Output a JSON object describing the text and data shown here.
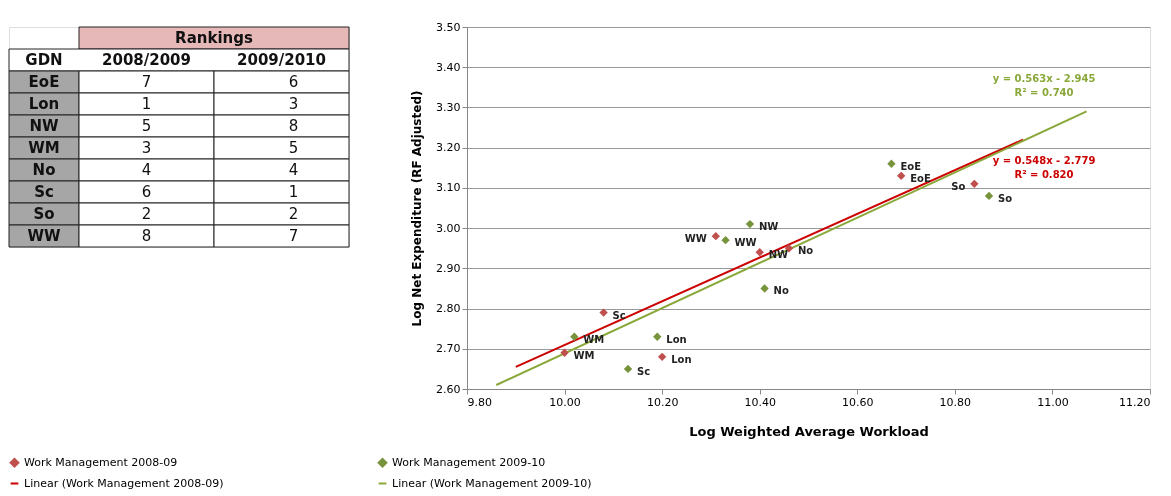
{
  "chart_data": [
    {
      "type": "other",
      "title": "Rankings",
      "xlabel": "GDN",
      "data_labels": true,
      "categories": [
        "EoE",
        "Lon",
        "NW",
        "WM",
        "No",
        "Sc",
        "So",
        "WW"
      ],
      "series": [
        {
          "name": "2008/2009",
          "values": [
            7,
            1,
            5,
            3,
            4,
            6,
            2,
            8
          ]
        },
        {
          "name": "2009/2010",
          "values": [
            6,
            3,
            8,
            5,
            4,
            1,
            2,
            7
          ]
        }
      ]
    },
    {
      "type": "scatter",
      "xlabel": "Log Weighted Average Workload",
      "ylabel": "Log Net Expenditure (RF Adjusted)",
      "xlim": [
        9.8,
        11.2
      ],
      "ylim": [
        2.6,
        3.5
      ],
      "xticks": [
        {
          "value": 9.8,
          "label": "9.80"
        },
        {
          "value": 10.0,
          "label": "10.00"
        },
        {
          "value": 10.2,
          "label": "10.20"
        },
        {
          "value": 10.4,
          "label": "10.40"
        },
        {
          "value": 10.6,
          "label": "10.60"
        },
        {
          "value": 10.8,
          "label": "10.80"
        },
        {
          "value": 11.0,
          "label": "11.00"
        },
        {
          "value": 11.2,
          "label": "11.20"
        }
      ],
      "yticks": [
        {
          "value": 2.6,
          "label": "2.60"
        },
        {
          "value": 2.7,
          "label": "2.70"
        },
        {
          "value": 2.8,
          "label": "2.80"
        },
        {
          "value": 2.9,
          "label": "2.90"
        },
        {
          "value": 3.0,
          "label": "3.00"
        },
        {
          "value": 3.1,
          "label": "3.10"
        },
        {
          "value": 3.2,
          "label": "3.20"
        },
        {
          "value": 3.3,
          "label": "3.30"
        },
        {
          "value": 3.4,
          "label": "3.40"
        },
        {
          "value": 3.5,
          "label": "3.50"
        }
      ],
      "grid": "y",
      "legend": "bottom",
      "series": [
        {
          "name": "Work Management 2008-09",
          "type": "scatter",
          "marker": "diamond",
          "color": "#c0504d",
          "x": [
            10.69,
            10.2,
            10.4,
            10.0,
            10.46,
            10.08,
            10.84,
            10.31
          ],
          "values": [
            3.13,
            2.68,
            2.94,
            2.69,
            2.95,
            2.79,
            3.11,
            2.98
          ]
        },
        {
          "name": "Work Management 2009-10",
          "type": "scatter",
          "marker": "diamond",
          "color": "#77933c",
          "x": [
            10.67,
            10.19,
            10.38,
            10.02,
            10.41,
            10.13,
            10.87,
            10.33
          ],
          "values": [
            3.16,
            2.73,
            3.01,
            2.73,
            2.85,
            2.65,
            3.08,
            2.97
          ]
        },
        {
          "name": "Linear (Work Management 2008-09)",
          "type": "line",
          "color": "#cc0000",
          "x": [
            9.9,
            10.94
          ],
          "values": [
            2.655,
            3.22
          ]
        },
        {
          "name": "Linear (Work Management 2009-10)",
          "type": "line",
          "color": "#8aa83a",
          "x": [
            9.86,
            11.07
          ],
          "values": [
            2.61,
            3.29
          ]
        }
      ],
      "annotations": [
        {
          "text": "EoE",
          "x": 10.69,
          "y": 3.13
        },
        {
          "text": "Lon",
          "x": 10.2,
          "y": 2.68
        },
        {
          "text": "NW",
          "x": 10.4,
          "y": 2.94
        },
        {
          "text": "WM",
          "x": 10.0,
          "y": 2.69
        },
        {
          "text": "No",
          "x": 10.46,
          "y": 2.95
        },
        {
          "text": "Sc",
          "x": 10.08,
          "y": 2.79
        },
        {
          "text": "So",
          "x": 10.84,
          "y": 3.11
        },
        {
          "text": "WW",
          "x": 10.31,
          "y": 2.98
        },
        {
          "text": "EoE",
          "x": 10.67,
          "y": 3.16
        },
        {
          "text": "Lon",
          "x": 10.19,
          "y": 2.73
        },
        {
          "text": "NW",
          "x": 10.38,
          "y": 3.01
        },
        {
          "text": "WM",
          "x": 10.02,
          "y": 2.73
        },
        {
          "text": "No",
          "x": 10.41,
          "y": 2.85
        },
        {
          "text": "Sc",
          "x": 10.13,
          "y": 2.65
        },
        {
          "text": "So",
          "x": 10.87,
          "y": 3.08
        },
        {
          "text": "WW",
          "x": 10.33,
          "y": 2.97
        },
        "y = 0.563x - 2.945",
        "R² = 0.740",
        "y = 0.548x - 2.779",
        "R² = 0.820"
      ]
    }
  ]
}
